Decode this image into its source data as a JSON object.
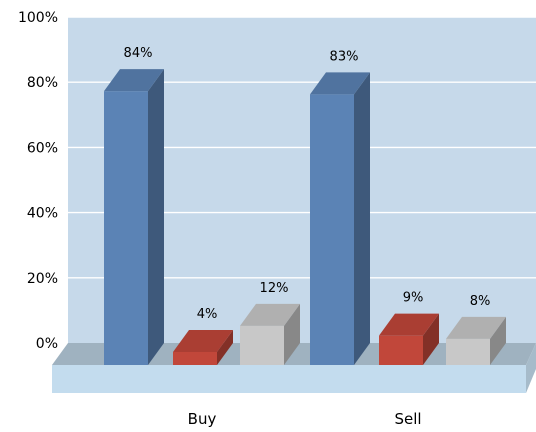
{
  "chart_data": {
    "type": "bar",
    "style": "3d-clustered-column",
    "categories": [
      "Buy",
      "Sell"
    ],
    "series": [
      {
        "values": [
          84,
          83
        ],
        "data_labels": [
          "84%",
          "83%"
        ],
        "color": "#5b83b5"
      },
      {
        "values": [
          4,
          9
        ],
        "data_labels": [
          "4%",
          "9%"
        ],
        "color": "#c1473a"
      },
      {
        "values": [
          12,
          8
        ],
        "data_labels": [
          "12%",
          "8%"
        ],
        "color": "#c8c8c8"
      }
    ],
    "y_ticks": [
      "0%",
      "20%",
      "40%",
      "60%",
      "80%",
      "100%"
    ],
    "ylim": [
      0,
      100
    ],
    "grid": true,
    "legend": "none",
    "colors": {
      "plot_background": "#c6d9ea",
      "gridline": "#ffffff",
      "floor_top": "#9fb2c0",
      "floor_front": "#c3dcee"
    }
  }
}
